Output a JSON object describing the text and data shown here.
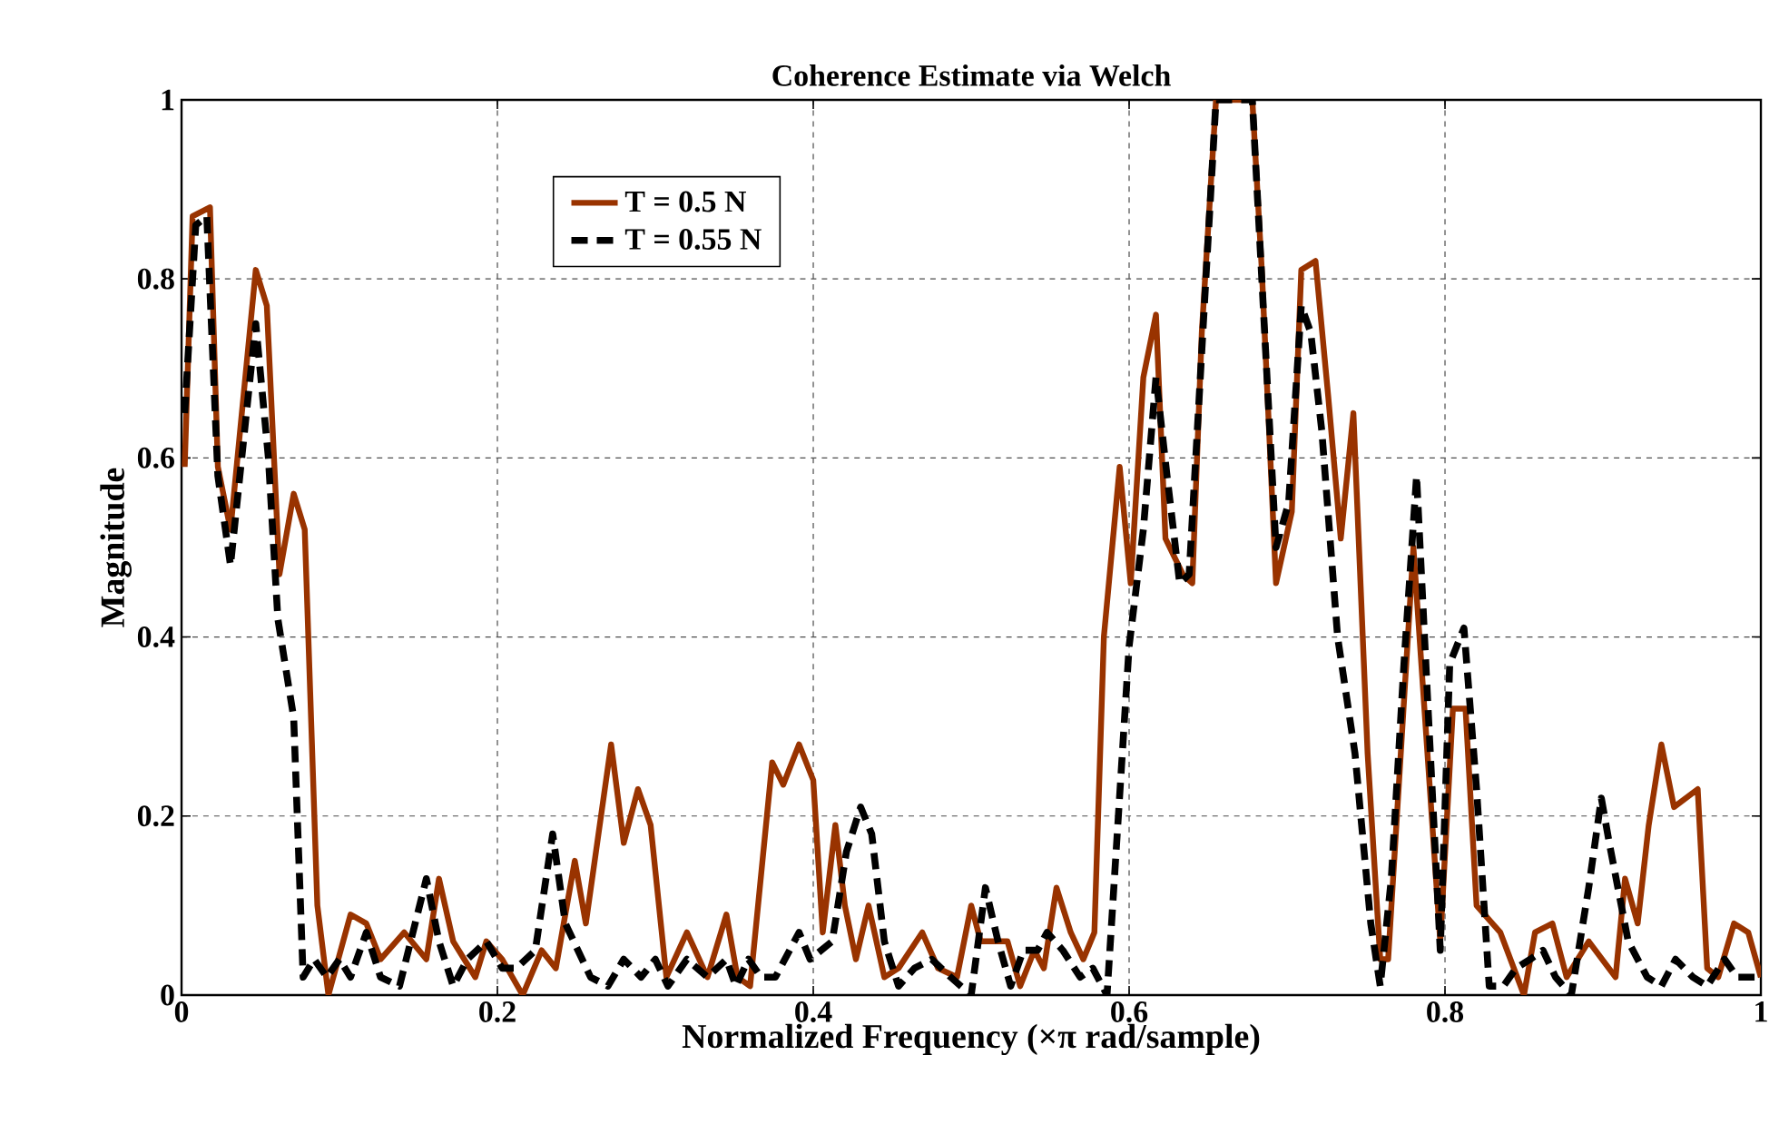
{
  "chart_data": {
    "type": "line",
    "title": "Coherence Estimate via Welch",
    "xlabel": "Normalized Frequency  (×π rad/sample)",
    "ylabel": "Magnitude",
    "xlim": [
      0,
      1
    ],
    "ylim": [
      0,
      1
    ],
    "xticks": [
      0,
      0.2,
      0.4,
      0.6,
      0.8,
      1
    ],
    "yticks": [
      0,
      0.2,
      0.4,
      0.6,
      0.8,
      1
    ],
    "grid": true,
    "legend": "top left",
    "series": [
      {
        "name": "T = 0.5 N",
        "color": "#993300",
        "line_style": "solid",
        "x": [
          0.002,
          0.007,
          0.018,
          0.023,
          0.031,
          0.047,
          0.054,
          0.062,
          0.071,
          0.078,
          0.086,
          0.093,
          0.107,
          0.117,
          0.126,
          0.141,
          0.155,
          0.163,
          0.172,
          0.186,
          0.193,
          0.203,
          0.216,
          0.228,
          0.237,
          0.249,
          0.256,
          0.272,
          0.28,
          0.289,
          0.297,
          0.307,
          0.32,
          0.333,
          0.345,
          0.352,
          0.36,
          0.374,
          0.381,
          0.391,
          0.4,
          0.406,
          0.414,
          0.42,
          0.427,
          0.435,
          0.445,
          0.454,
          0.469,
          0.479,
          0.491,
          0.5,
          0.506,
          0.523,
          0.531,
          0.54,
          0.546,
          0.554,
          0.563,
          0.571,
          0.578,
          0.584,
          0.594,
          0.601,
          0.609,
          0.617,
          0.623,
          0.634,
          0.64,
          0.646,
          0.655,
          0.678,
          0.684,
          0.693,
          0.703,
          0.709,
          0.718,
          0.726,
          0.734,
          0.742,
          0.751,
          0.759,
          0.764,
          0.78,
          0.797,
          0.805,
          0.813,
          0.82,
          0.835,
          0.85,
          0.857,
          0.868,
          0.877,
          0.891,
          0.908,
          0.914,
          0.922,
          0.929,
          0.937,
          0.945,
          0.96,
          0.966,
          0.973,
          0.983,
          0.992,
          1.0
        ],
        "values": [
          0.59,
          0.87,
          0.88,
          0.59,
          0.52,
          0.81,
          0.77,
          0.47,
          0.56,
          0.52,
          0.1,
          0.0,
          0.09,
          0.08,
          0.04,
          0.07,
          0.04,
          0.13,
          0.06,
          0.02,
          0.06,
          0.04,
          0.0,
          0.05,
          0.03,
          0.15,
          0.08,
          0.28,
          0.17,
          0.23,
          0.19,
          0.02,
          0.07,
          0.02,
          0.09,
          0.02,
          0.01,
          0.26,
          0.235,
          0.28,
          0.24,
          0.07,
          0.19,
          0.1,
          0.04,
          0.1,
          0.02,
          0.03,
          0.07,
          0.03,
          0.02,
          0.1,
          0.06,
          0.06,
          0.01,
          0.05,
          0.03,
          0.12,
          0.07,
          0.04,
          0.07,
          0.4,
          0.59,
          0.46,
          0.69,
          0.76,
          0.51,
          0.47,
          0.46,
          0.74,
          1.0,
          1.0,
          0.81,
          0.46,
          0.54,
          0.81,
          0.82,
          0.67,
          0.51,
          0.65,
          0.27,
          0.04,
          0.04,
          0.5,
          0.06,
          0.32,
          0.32,
          0.1,
          0.07,
          0.0,
          0.07,
          0.08,
          0.02,
          0.06,
          0.02,
          0.13,
          0.08,
          0.19,
          0.28,
          0.21,
          0.23,
          0.03,
          0.02,
          0.08,
          0.07,
          0.02
        ]
      },
      {
        "name": "T = 0.55 N",
        "color": "#000000",
        "line_style": "dashed",
        "x": [
          0.002,
          0.009,
          0.016,
          0.023,
          0.031,
          0.047,
          0.055,
          0.061,
          0.071,
          0.077,
          0.084,
          0.092,
          0.1,
          0.107,
          0.117,
          0.126,
          0.138,
          0.155,
          0.163,
          0.172,
          0.181,
          0.193,
          0.203,
          0.212,
          0.224,
          0.235,
          0.243,
          0.259,
          0.27,
          0.28,
          0.291,
          0.3,
          0.308,
          0.32,
          0.333,
          0.345,
          0.351,
          0.359,
          0.367,
          0.376,
          0.391,
          0.398,
          0.412,
          0.421,
          0.43,
          0.437,
          0.445,
          0.454,
          0.464,
          0.475,
          0.487,
          0.5,
          0.509,
          0.517,
          0.525,
          0.533,
          0.542,
          0.548,
          0.558,
          0.569,
          0.577,
          0.586,
          0.6,
          0.609,
          0.617,
          0.624,
          0.632,
          0.638,
          0.655,
          0.678,
          0.693,
          0.701,
          0.709,
          0.715,
          0.722,
          0.732,
          0.743,
          0.753,
          0.759,
          0.766,
          0.774,
          0.782,
          0.789,
          0.797,
          0.803,
          0.812,
          0.82,
          0.828,
          0.837,
          0.845,
          0.854,
          0.862,
          0.87,
          0.88,
          0.891,
          0.899,
          0.904,
          0.916,
          0.928,
          0.937,
          0.946,
          0.957,
          0.966,
          0.977,
          0.985,
          0.996
        ],
        "values": [
          0.65,
          0.86,
          0.87,
          0.58,
          0.48,
          0.75,
          0.6,
          0.42,
          0.31,
          0.02,
          0.04,
          0.02,
          0.04,
          0.02,
          0.07,
          0.02,
          0.01,
          0.13,
          0.06,
          0.01,
          0.04,
          0.06,
          0.03,
          0.03,
          0.05,
          0.18,
          0.08,
          0.02,
          0.01,
          0.04,
          0.02,
          0.04,
          0.01,
          0.04,
          0.02,
          0.04,
          0.01,
          0.04,
          0.02,
          0.02,
          0.07,
          0.04,
          0.06,
          0.16,
          0.21,
          0.18,
          0.06,
          0.01,
          0.03,
          0.04,
          0.02,
          0.0,
          0.12,
          0.06,
          0.01,
          0.05,
          0.05,
          0.07,
          0.05,
          0.02,
          0.03,
          0.0,
          0.39,
          0.52,
          0.69,
          0.58,
          0.46,
          0.47,
          1.0,
          1.0,
          0.5,
          0.55,
          0.77,
          0.74,
          0.63,
          0.4,
          0.27,
          0.08,
          0.01,
          0.13,
          0.37,
          0.58,
          0.33,
          0.05,
          0.37,
          0.41,
          0.23,
          0.01,
          0.01,
          0.03,
          0.04,
          0.05,
          0.02,
          0.0,
          0.12,
          0.22,
          0.17,
          0.06,
          0.02,
          0.01,
          0.04,
          0.02,
          0.01,
          0.04,
          0.02,
          0.02
        ]
      }
    ]
  }
}
